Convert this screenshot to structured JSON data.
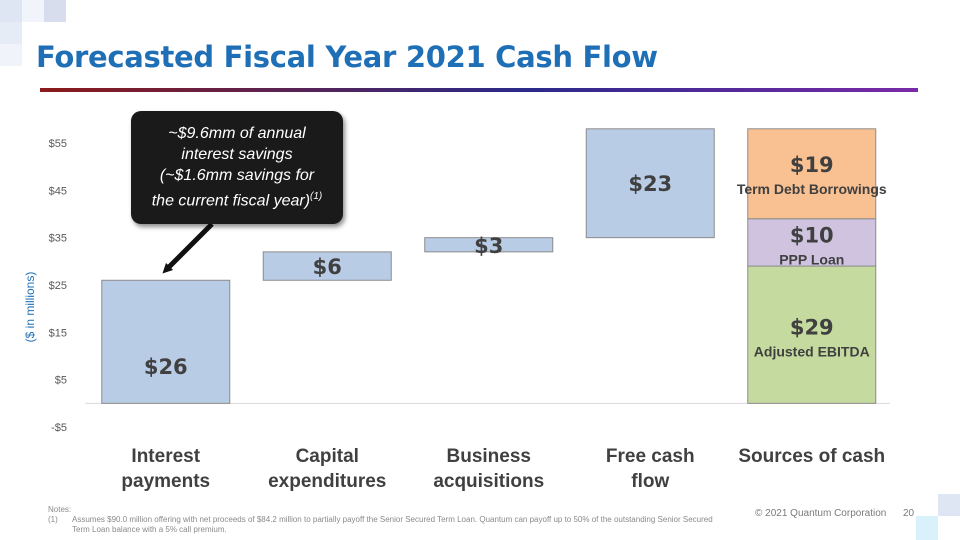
{
  "slide": {
    "title": "Forecasted Fiscal Year 2021 Cash Flow",
    "y_axis_label": "($ in millions)",
    "callout": {
      "line1": "~$9.6mm of annual",
      "line2": "interest savings",
      "line3": "(~$1.6mm savings for",
      "line4": "the current fiscal year)",
      "footnote_ref": "(1)"
    },
    "notes": {
      "heading": "Notes:",
      "item_number": "(1)",
      "item_text": "Assumes $90.0 million offering with net proceeds of $84.2 million to partially payoff the Senior Secured Term Loan.  Quantum can payoff up to 50% of the outstanding Senior Secured Term Loan balance with a 5% call premium."
    },
    "footer": "© 2021 Quantum Corporation",
    "page_number": "20",
    "colors": {
      "title": "#1f6fb6",
      "bar_blue": "#b9cce6",
      "term_debt": "#f9c192",
      "ppp_loan": "#cfc3df",
      "ebitda": "#c5da9e"
    }
  },
  "chart_data": {
    "type": "bar",
    "subtype": "waterfall",
    "title": "Forecasted Fiscal Year 2021 Cash Flow",
    "ylabel": "($ in millions)",
    "ylim": [
      -5,
      60
    ],
    "y_ticks": [
      -5,
      5,
      15,
      25,
      35,
      45,
      55
    ],
    "y_tick_labels": [
      "-$5",
      "$5",
      "$15",
      "$25",
      "$35",
      "$45",
      "$55"
    ],
    "grid": false,
    "categories": [
      {
        "line1": "Interest",
        "line2": "payments"
      },
      {
        "line1": "Capital",
        "line2": "expenditures"
      },
      {
        "line1": "Business",
        "line2": "acquisitions"
      },
      {
        "line1": "Free cash",
        "line2": "flow"
      },
      {
        "line1": "Sources of cash",
        "line2": ""
      }
    ],
    "uses_bars": [
      {
        "category": "Interest payments",
        "bottom": 0,
        "value": 26,
        "label": "$26"
      },
      {
        "category": "Capital expenditures",
        "bottom": 26,
        "value": 6,
        "label": "$6"
      },
      {
        "category": "Business acquisitions",
        "bottom": 32,
        "value": 3,
        "label": "$3"
      },
      {
        "category": "Free cash flow",
        "bottom": 35,
        "value": 23,
        "label": "$23"
      }
    ],
    "sources_stack": [
      {
        "name": "Adjusted EBITDA",
        "value": 29,
        "label": "$29"
      },
      {
        "name": "PPP Loan",
        "value": 10,
        "label": "$10"
      },
      {
        "name": "Term Debt Borrowings",
        "value": 19,
        "label": "$19"
      }
    ]
  }
}
